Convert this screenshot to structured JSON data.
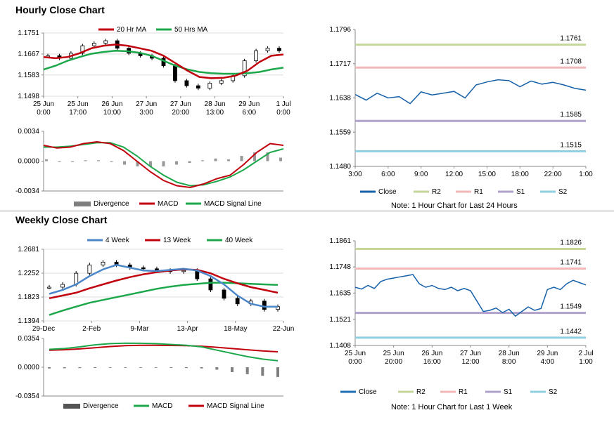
{
  "titles": {
    "hourly": "Hourly Close Chart",
    "weekly": "Weekly Close Chart"
  },
  "colors": {
    "red": "#c0000c",
    "green": "#1ca84a",
    "blue": "#1f6fb4",
    "darkblue": "#1560a8",
    "R2": "#c5d69b",
    "R1": "#f2b8b8",
    "S1": "#b0a0cc",
    "S2": "#8fcfe0",
    "grey": "#7f7f7f"
  },
  "notes": {
    "hourly_right": "Note: 1 Hour Chart for Last 24 Hours",
    "weekly_right": "Note: 1 Hour Chart for Last 1 Week"
  },
  "chart_data": [
    {
      "id": "hourly_price",
      "type": "line+candlestick",
      "title": "Hourly Close Chart",
      "y_ticks": [
        "1.1751",
        "1.1667",
        "1.1583",
        "1.1498"
      ],
      "ylim": [
        1.1498,
        1.1751
      ],
      "x_ticks": [
        [
          "25 Jun",
          "0:00"
        ],
        [
          "25 Jun",
          "17:00"
        ],
        [
          "26 Jun",
          "10:00"
        ],
        [
          "27 Jun",
          "3:00"
        ],
        [
          "27 Jun",
          "20:00"
        ],
        [
          "28 Jun",
          "13:00"
        ],
        [
          "29 Jun",
          "6:00"
        ],
        [
          "1 Jul",
          "0:00"
        ]
      ],
      "legend": [
        "20 Hr MA",
        "50 Hrs MA"
      ],
      "series": [
        {
          "name": "20 Hr MA",
          "values": [
            1.1655,
            1.165,
            1.1655,
            1.167,
            1.169,
            1.17,
            1.1705,
            1.17,
            1.169,
            1.168,
            1.166,
            1.163,
            1.16,
            1.1575,
            1.157,
            1.1572,
            1.158,
            1.16,
            1.1635,
            1.166,
            1.1665
          ]
        },
        {
          "name": "50 Hrs MA",
          "values": [
            1.1605,
            1.162,
            1.164,
            1.1655,
            1.1668,
            1.1675,
            1.168,
            1.1678,
            1.1672,
            1.166,
            1.164,
            1.162,
            1.1605,
            1.1595,
            1.159,
            1.1588,
            1.1588,
            1.159,
            1.1595,
            1.1605,
            1.1612
          ]
        },
        {
          "name": "Close",
          "values": [
            1.166,
            1.165,
            1.167,
            1.17,
            1.171,
            1.172,
            1.169,
            1.167,
            1.166,
            1.165,
            1.162,
            1.156,
            1.154,
            1.153,
            1.155,
            1.156,
            1.158,
            1.164,
            1.168,
            1.169,
            1.168
          ]
        }
      ]
    },
    {
      "id": "hourly_macd",
      "type": "line+bar",
      "y_ticks": [
        "0.0034",
        "0.0000",
        "-0.0034"
      ],
      "ylim": [
        -0.0034,
        0.0034
      ],
      "legend": [
        "Divergence",
        "MACD",
        "MACD Signal Line"
      ],
      "series": [
        {
          "name": "MACD",
          "values": [
            0.0018,
            0.0015,
            0.0016,
            0.002,
            0.0022,
            0.002,
            0.0012,
            0.0,
            -0.0012,
            -0.0022,
            -0.0028,
            -0.003,
            -0.0026,
            -0.002,
            -0.0016,
            -0.0004,
            0.001,
            0.002,
            0.0018
          ]
        },
        {
          "name": "MACD Signal Line",
          "values": [
            0.0016,
            0.0016,
            0.0017,
            0.0019,
            0.0021,
            0.0021,
            0.0016,
            0.0006,
            -0.0006,
            -0.0016,
            -0.0024,
            -0.0028,
            -0.0027,
            -0.0023,
            -0.0018,
            -0.001,
            0.0,
            0.001,
            0.0014
          ]
        },
        {
          "name": "Divergence",
          "values": [
            0.0002,
            -0.0001,
            -0.0001,
            0.0001,
            0.0001,
            -0.0001,
            -0.0004,
            -0.0006,
            -0.0006,
            -0.0006,
            -0.0004,
            -0.0002,
            0.0001,
            0.0003,
            0.0002,
            0.0006,
            0.001,
            0.001,
            0.0004
          ]
        }
      ]
    },
    {
      "id": "hourly_levels",
      "type": "line",
      "y_ticks": [
        "1.1796",
        "1.1717",
        "1.1638",
        "1.1559",
        "1.1480"
      ],
      "ylim": [
        1.148,
        1.1796
      ],
      "x_ticks": [
        "3:00",
        "6:00",
        "9:00",
        "12:00",
        "15:00",
        "18:00",
        "22:00",
        "1:00"
      ],
      "legend": [
        "Close",
        "R2",
        "R1",
        "S1",
        "S2"
      ],
      "levels": {
        "R2": 1.1761,
        "R1": 1.1708,
        "S1": 1.1585,
        "S2": 1.1515
      },
      "level_labels": {
        "R2": "1.1761",
        "R1": "1.1708",
        "S1": "1.1585",
        "S2": "1.1515"
      },
      "series": [
        {
          "name": "Close",
          "values": [
            1.1646,
            1.1633,
            1.1649,
            1.1638,
            1.1641,
            1.1625,
            1.1652,
            1.1645,
            1.1649,
            1.1653,
            1.1638,
            1.1668,
            1.1675,
            1.168,
            1.1678,
            1.1664,
            1.1677,
            1.167,
            1.1674,
            1.1668,
            1.166,
            1.1656
          ]
        }
      ]
    },
    {
      "id": "weekly_price",
      "type": "line+candlestick",
      "title": "Weekly Close Chart",
      "y_ticks": [
        "1.2681",
        "1.2252",
        "1.1823",
        "1.1394"
      ],
      "ylim": [
        1.1394,
        1.2681
      ],
      "x_ticks": [
        "29-Dec",
        "2-Feb",
        "9-Mar",
        "13-Apr",
        "18-May",
        "22-Jun"
      ],
      "legend": [
        "4 Week",
        "13 Week",
        "40 Week"
      ],
      "series": [
        {
          "name": "4 Week",
          "values": [
            1.188,
            1.195,
            1.205,
            1.22,
            1.232,
            1.24,
            1.235,
            1.23,
            1.229,
            1.231,
            1.233,
            1.23,
            1.22,
            1.205,
            1.185,
            1.17,
            1.165,
            1.165
          ]
        },
        {
          "name": "13 Week",
          "values": [
            1.18,
            1.185,
            1.19,
            1.198,
            1.205,
            1.212,
            1.218,
            1.223,
            1.227,
            1.23,
            1.232,
            1.231,
            1.225,
            1.215,
            1.207,
            1.2,
            1.195,
            1.19
          ]
        },
        {
          "name": "40 Week",
          "values": [
            1.15,
            1.158,
            1.165,
            1.172,
            1.177,
            1.182,
            1.187,
            1.192,
            1.197,
            1.201,
            1.204,
            1.206,
            1.208,
            1.208,
            1.207,
            1.206,
            1.205,
            1.204
          ]
        },
        {
          "name": "Close",
          "values": [
            1.2,
            1.205,
            1.225,
            1.24,
            1.245,
            1.24,
            1.235,
            1.233,
            1.23,
            1.228,
            1.23,
            1.215,
            1.195,
            1.18,
            1.17,
            1.175,
            1.16,
            1.165
          ]
        }
      ]
    },
    {
      "id": "weekly_macd",
      "type": "line+bar",
      "y_ticks": [
        "0.0354",
        "0.0000",
        "-0.0354"
      ],
      "ylim": [
        -0.0354,
        0.0354
      ],
      "legend": [
        "Divergence",
        "MACD",
        "MACD Signal Line"
      ],
      "series": [
        {
          "name": "MACD",
          "values": [
            0.022,
            0.023,
            0.025,
            0.0275,
            0.029,
            0.0295,
            0.0294,
            0.029,
            0.028,
            0.027,
            0.025,
            0.021,
            0.017,
            0.013,
            0.01,
            0.008
          ]
        },
        {
          "name": "MACD Signal Line",
          "values": [
            0.021,
            0.0215,
            0.0225,
            0.024,
            0.0255,
            0.0265,
            0.027,
            0.027,
            0.0268,
            0.0265,
            0.0258,
            0.0245,
            0.023,
            0.0215,
            0.02,
            0.019
          ]
        },
        {
          "name": "Divergence",
          "values": [
            -0.0015,
            -0.0012,
            -0.001,
            -0.0008,
            -0.0006,
            -0.0005,
            -0.0005,
            -0.0006,
            -0.0008,
            -0.001,
            -0.0014,
            -0.003,
            -0.006,
            -0.0085,
            -0.0105,
            -0.012
          ]
        }
      ]
    },
    {
      "id": "weekly_levels",
      "type": "line",
      "y_ticks": [
        "1.1861",
        "1.1748",
        "1.1635",
        "1.1521",
        "1.1408"
      ],
      "ylim": [
        1.1408,
        1.1861
      ],
      "x_ticks": [
        [
          "25 Jun",
          "0:00"
        ],
        [
          "25 Jun",
          "20:00"
        ],
        [
          "26 Jun",
          "16:00"
        ],
        [
          "27 Jun",
          "12:00"
        ],
        [
          "28 Jun",
          "8:00"
        ],
        [
          "29 Jun",
          "4:00"
        ],
        [
          "2 Jul",
          "1:00"
        ]
      ],
      "legend": [
        "Close",
        "R2",
        "R1",
        "S1",
        "S2"
      ],
      "levels": {
        "R2": 1.1826,
        "R1": 1.1741,
        "S1": 1.1549,
        "S2": 1.1442
      },
      "level_labels": {
        "R2": "1.1826",
        "R1": "1.1741",
        "S1": "1.1549",
        "S2": "1.1442"
      },
      "series": [
        {
          "name": "Close",
          "values": [
            1.166,
            1.1652,
            1.1668,
            1.1655,
            1.1685,
            1.1695,
            1.17,
            1.1705,
            1.171,
            1.1715,
            1.1675,
            1.166,
            1.1668,
            1.1655,
            1.165,
            1.166,
            1.1645,
            1.1655,
            1.1645,
            1.16,
            1.1555,
            1.156,
            1.157,
            1.155,
            1.1565,
            1.1535,
            1.1555,
            1.1575,
            1.156,
            1.1568,
            1.165,
            1.166,
            1.165,
            1.1675,
            1.169,
            1.168,
            1.167
          ]
        }
      ]
    }
  ]
}
